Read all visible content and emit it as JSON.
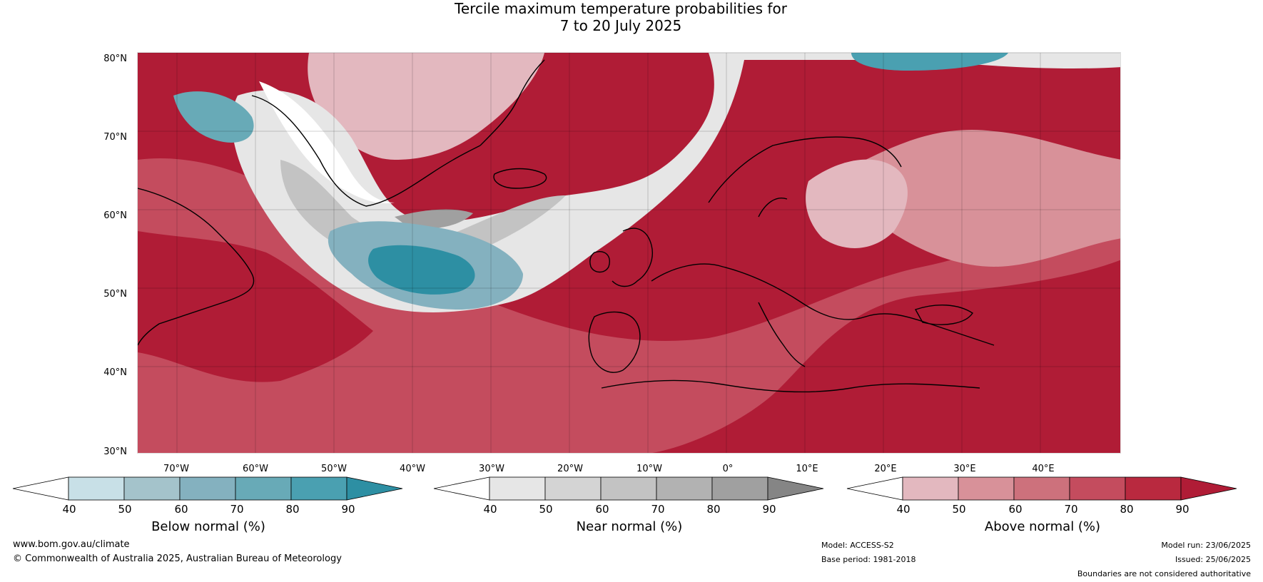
{
  "title": {
    "line1": "Tercile maximum temperature probabilities for",
    "line2": "7 to 20 July 2025"
  },
  "map": {
    "latitude_labels": [
      "80°N",
      "70°N",
      "60°N",
      "50°N",
      "40°N",
      "30°N"
    ],
    "longitude_labels": [
      "70°W",
      "60°W",
      "50°W",
      "40°W",
      "30°W",
      "20°W",
      "10°W",
      "0°",
      "10°E",
      "20°E",
      "30°E",
      "40°E"
    ],
    "colors": {
      "above_dominant": "#b01c36",
      "near_normal_band": "#e6e6e6",
      "below_normal_core": "#2f8fa4"
    }
  },
  "colorbars": [
    {
      "title": "Below normal (%)",
      "ticks": [
        "40",
        "50",
        "60",
        "70",
        "80",
        "90"
      ],
      "colors": [
        "#ffffff",
        "#c8e0e7",
        "#a4c3cb",
        "#84b1bf",
        "#68aab7",
        "#4aa0b1",
        "#2d8fa3"
      ]
    },
    {
      "title": "Near normal (%)",
      "ticks": [
        "40",
        "50",
        "60",
        "70",
        "80",
        "90"
      ],
      "colors": [
        "#ffffff",
        "#e6e6e6",
        "#d4d4d4",
        "#c3c3c3",
        "#b2b2b2",
        "#a0a0a0",
        "#858585"
      ]
    },
    {
      "title": "Above normal (%)",
      "ticks": [
        "40",
        "50",
        "60",
        "70",
        "80",
        "90"
      ],
      "colors": [
        "#ffffff",
        "#e3b8bf",
        "#d89199",
        "#cd717c",
        "#c44c5e",
        "#b9293f",
        "#b01c36"
      ]
    }
  ],
  "footer": {
    "website": "www.bom.gov.au/climate",
    "copyright": "© Commonwealth of Australia 2025, Australian Bureau of Meteorology",
    "model": "Model: ACCESS-S2",
    "base_period": "Base period: 1981-2018",
    "model_run": "Model run: 23/06/2025",
    "issued": "Issued: 25/06/2025",
    "disclaimer": "Boundaries are not considered authoritative"
  }
}
